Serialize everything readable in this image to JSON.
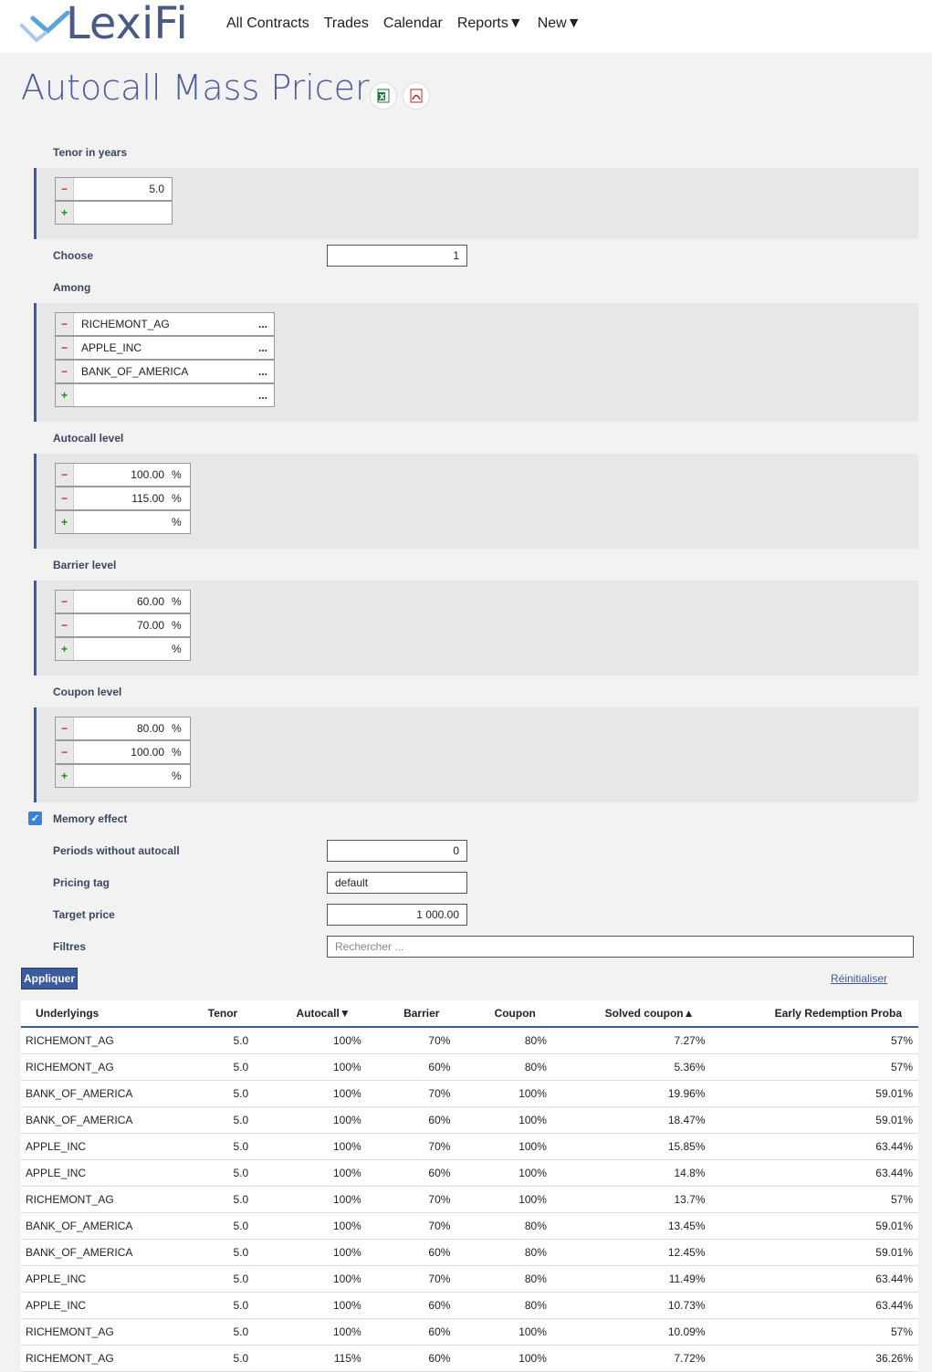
{
  "brand": "LexiFi",
  "nav": [
    "All Contracts",
    "Trades",
    "Calendar",
    "Reports▼",
    "New▼"
  ],
  "page_title": "Autocall Mass Pricer",
  "icons": {
    "excel": "excel-export-icon",
    "pdf": "pdf-export-icon"
  },
  "colors": {
    "accent": "#3d5a9c",
    "title": "#4a5a9a",
    "minus": "#c0302a",
    "plus": "#1a8a1a"
  },
  "form": {
    "tenor": {
      "label": "Tenor in years",
      "values": [
        "5.0"
      ],
      "minus": "−",
      "plus": "+"
    },
    "choose": {
      "label": "Choose",
      "value": "1"
    },
    "among": {
      "label": "Among",
      "values": [
        "RICHEMONT_AG",
        "APPLE_INC",
        "BANK_OF_AMERICA"
      ],
      "dots": "..."
    },
    "autocall": {
      "label": "Autocall level",
      "values": [
        "100.00",
        "115.00"
      ],
      "unit": "%"
    },
    "barrier": {
      "label": "Barrier level",
      "values": [
        "60.00",
        "70.00"
      ],
      "unit": "%"
    },
    "coupon": {
      "label": "Coupon level",
      "values": [
        "80.00",
        "100.00"
      ],
      "unit": "%"
    },
    "memory": {
      "label": "Memory effect",
      "checked": true,
      "check": "✓"
    },
    "periods": {
      "label": "Periods without autocall",
      "value": "0"
    },
    "pricing_tag": {
      "label": "Pricing tag",
      "value": "default"
    },
    "target_price": {
      "label": "Target price",
      "value": "1 000.00"
    },
    "filters": {
      "label": "Filtres",
      "placeholder": "Rechercher ..."
    }
  },
  "actions": {
    "apply": "Appliquer",
    "reset": "Réinitialiser"
  },
  "table": {
    "headers": [
      "Underlyings",
      "Tenor",
      "Autocall▼",
      "Barrier",
      "Coupon",
      "Solved coupon▲",
      "Early Redemption Proba"
    ],
    "rows": [
      [
        "RICHEMONT_AG",
        "5.0",
        "100%",
        "70%",
        "80%",
        "7.27%",
        "57%"
      ],
      [
        "RICHEMONT_AG",
        "5.0",
        "100%",
        "60%",
        "80%",
        "5.36%",
        "57%"
      ],
      [
        "BANK_OF_AMERICA",
        "5.0",
        "100%",
        "70%",
        "100%",
        "19.96%",
        "59.01%"
      ],
      [
        "BANK_OF_AMERICA",
        "5.0",
        "100%",
        "60%",
        "100%",
        "18.47%",
        "59.01%"
      ],
      [
        "APPLE_INC",
        "5.0",
        "100%",
        "70%",
        "100%",
        "15.85%",
        "63.44%"
      ],
      [
        "APPLE_INC",
        "5.0",
        "100%",
        "60%",
        "100%",
        "14.8%",
        "63.44%"
      ],
      [
        "RICHEMONT_AG",
        "5.0",
        "100%",
        "70%",
        "100%",
        "13.7%",
        "57%"
      ],
      [
        "BANK_OF_AMERICA",
        "5.0",
        "100%",
        "70%",
        "80%",
        "13.45%",
        "59.01%"
      ],
      [
        "BANK_OF_AMERICA",
        "5.0",
        "100%",
        "60%",
        "80%",
        "12.45%",
        "59.01%"
      ],
      [
        "APPLE_INC",
        "5.0",
        "100%",
        "70%",
        "80%",
        "11.49%",
        "63.44%"
      ],
      [
        "APPLE_INC",
        "5.0",
        "100%",
        "60%",
        "80%",
        "10.73%",
        "63.44%"
      ],
      [
        "RICHEMONT_AG",
        "5.0",
        "100%",
        "60%",
        "100%",
        "10.09%",
        "57%"
      ],
      [
        "RICHEMONT_AG",
        "5.0",
        "115%",
        "60%",
        "100%",
        "7.72%",
        "36.26%"
      ]
    ]
  }
}
